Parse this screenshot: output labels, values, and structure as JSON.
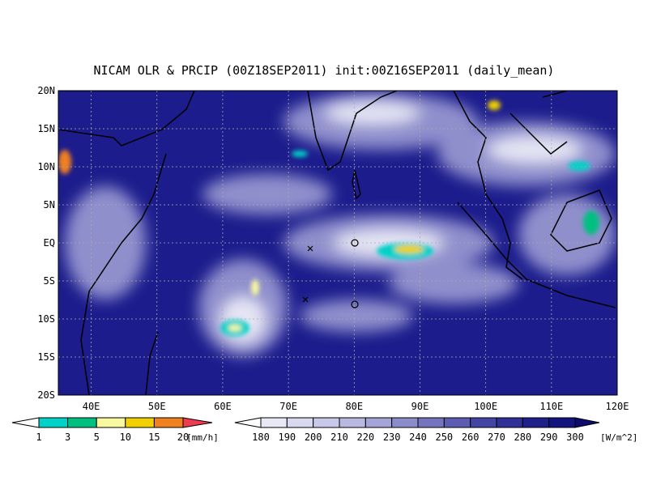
{
  "title": "NICAM OLR & PRCIP (00Z18SEP2011) init:00Z16SEP2011 (daily_mean)",
  "lat_labels": [
    "20N",
    "15N",
    "10N",
    "5N",
    "EQ",
    "5S",
    "10S",
    "15S",
    "20S"
  ],
  "lon_labels": [
    "40E",
    "50E",
    "60E",
    "70E",
    "80E",
    "90E",
    "100E",
    "110E",
    "120E"
  ],
  "colorbars": [
    {
      "levels": [
        1,
        3,
        5,
        10,
        15,
        20
      ],
      "unit": "[mm/h]",
      "colors": [
        "#ffffff",
        "#00d2c8",
        "#00c080",
        "#f8f8a0",
        "#f0d000",
        "#f08020",
        "#f03c50"
      ]
    },
    {
      "levels": [
        180,
        190,
        200,
        210,
        220,
        230,
        240,
        250,
        260,
        270,
        280,
        290,
        300
      ],
      "unit": "[W/m^2]",
      "colors": [
        "#ffffff",
        "#e8e8f4",
        "#d8d8ee",
        "#c8c8e8",
        "#b8b8e0",
        "#a4a4d6",
        "#8c8cca",
        "#7474be",
        "#5c5cb2",
        "#4444a4",
        "#303098",
        "#20208a",
        "#14147e",
        "#0c0c6e"
      ]
    }
  ]
}
